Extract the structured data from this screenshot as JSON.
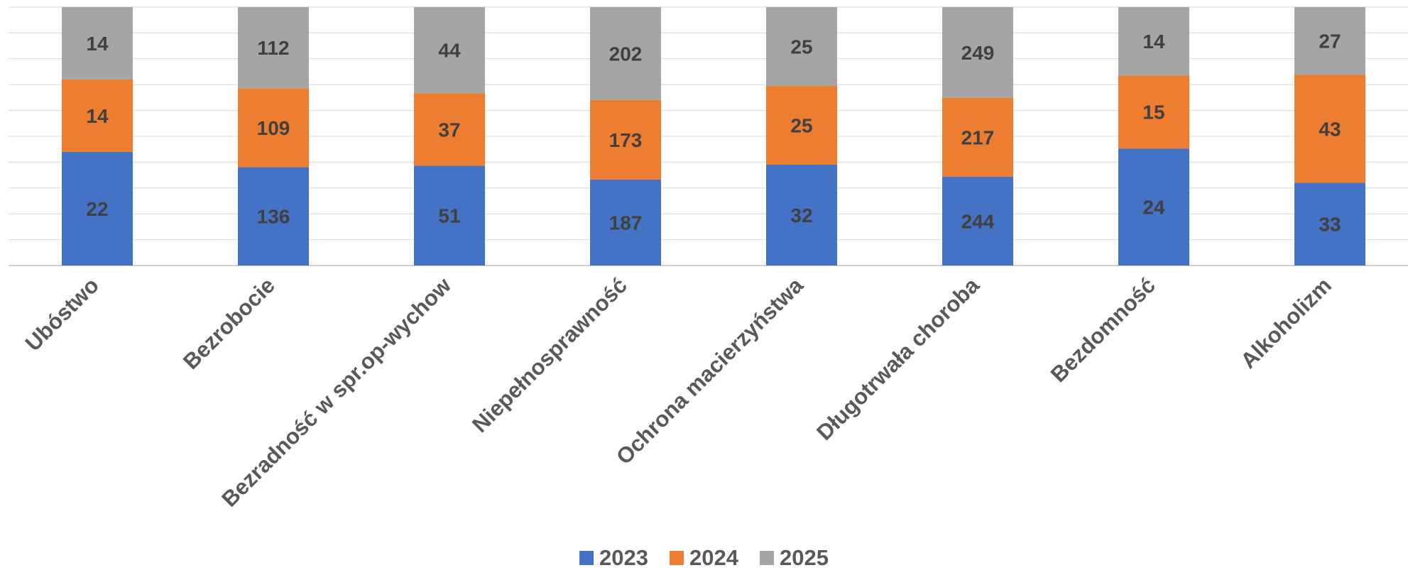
{
  "chart_data": {
    "type": "bar",
    "stacked": "percent",
    "categories": [
      "Ubóstwo",
      "Bezrobocie",
      "Bezradność w spr.op-wychow",
      "Niepełnosprawność",
      "Ochrona macierzyństwa",
      "Długotrwała choroba",
      "Bezdomność",
      "Alkoholizm"
    ],
    "series": [
      {
        "name": "2023",
        "color": "#4472C4",
        "values": [
          22,
          136,
          51,
          187,
          32,
          244,
          24,
          33
        ]
      },
      {
        "name": "2024",
        "color": "#ED7D31",
        "values": [
          14,
          109,
          37,
          173,
          25,
          217,
          15,
          43
        ]
      },
      {
        "name": "2025",
        "color": "#A5A5A5",
        "values": [
          14,
          112,
          44,
          202,
          25,
          249,
          14,
          27
        ]
      }
    ],
    "title": "",
    "xlabel": "",
    "ylabel": "",
    "grid": true,
    "legend_position": "bottom"
  }
}
